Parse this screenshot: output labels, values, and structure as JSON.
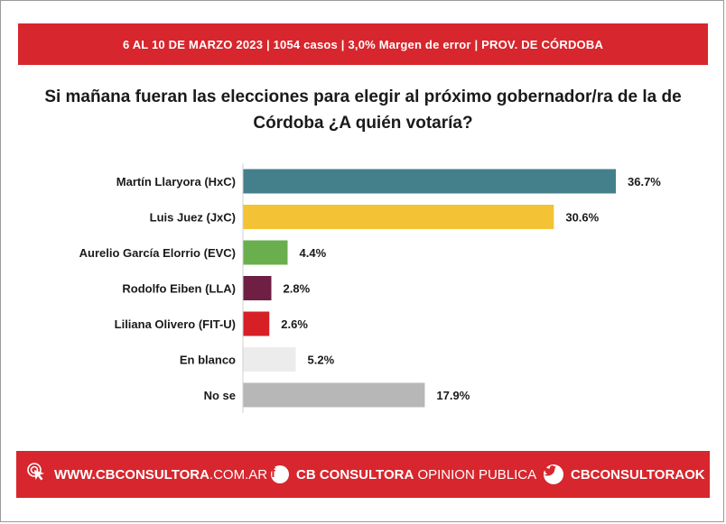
{
  "header": {
    "banner_text": "6 AL 10 DE MARZO 2023 | 1054 casos  |  3,0% Margen de error  | PROV. DE CÓRDOBA"
  },
  "chart_data": {
    "type": "bar",
    "orientation": "horizontal",
    "title_line1": "Si mañana fueran las elecciones para elegir al próximo gobernador/ra de la de",
    "title_line2": "Córdoba ¿A quién votaría?",
    "categories": [
      "Martín Llaryora (HxC)",
      "Luis Juez (JxC)",
      "Aurelio García Elorrio (EVC)",
      "Rodolfo Eiben (LLA)",
      "Liliana Olivero (FIT-U)",
      "En blanco",
      "No se"
    ],
    "values": [
      36.7,
      30.6,
      4.4,
      2.8,
      2.6,
      5.2,
      17.9
    ],
    "value_labels": [
      "36.7%",
      "30.6%",
      "4.4%",
      "2.8%",
      "2.6%",
      "5.2%",
      "17.9%"
    ],
    "colors": [
      "#447f8c",
      "#f3c335",
      "#6aaf4e",
      "#6e1f43",
      "#d71f26",
      "#ececec",
      "#b7b7b7"
    ],
    "xlim": [
      0,
      36.7
    ],
    "xlabel": "",
    "ylabel": ""
  },
  "footer": {
    "website_strong": "WWW.CBCONSULTORA",
    "website_light": ".COM.AR",
    "facebook_strong": "CB CONSULTORA",
    "facebook_light": " OPINION PUBLICA",
    "twitter_handle": "CBCONSULTORAOK"
  },
  "colors": {
    "brand_red": "#d7262d"
  }
}
